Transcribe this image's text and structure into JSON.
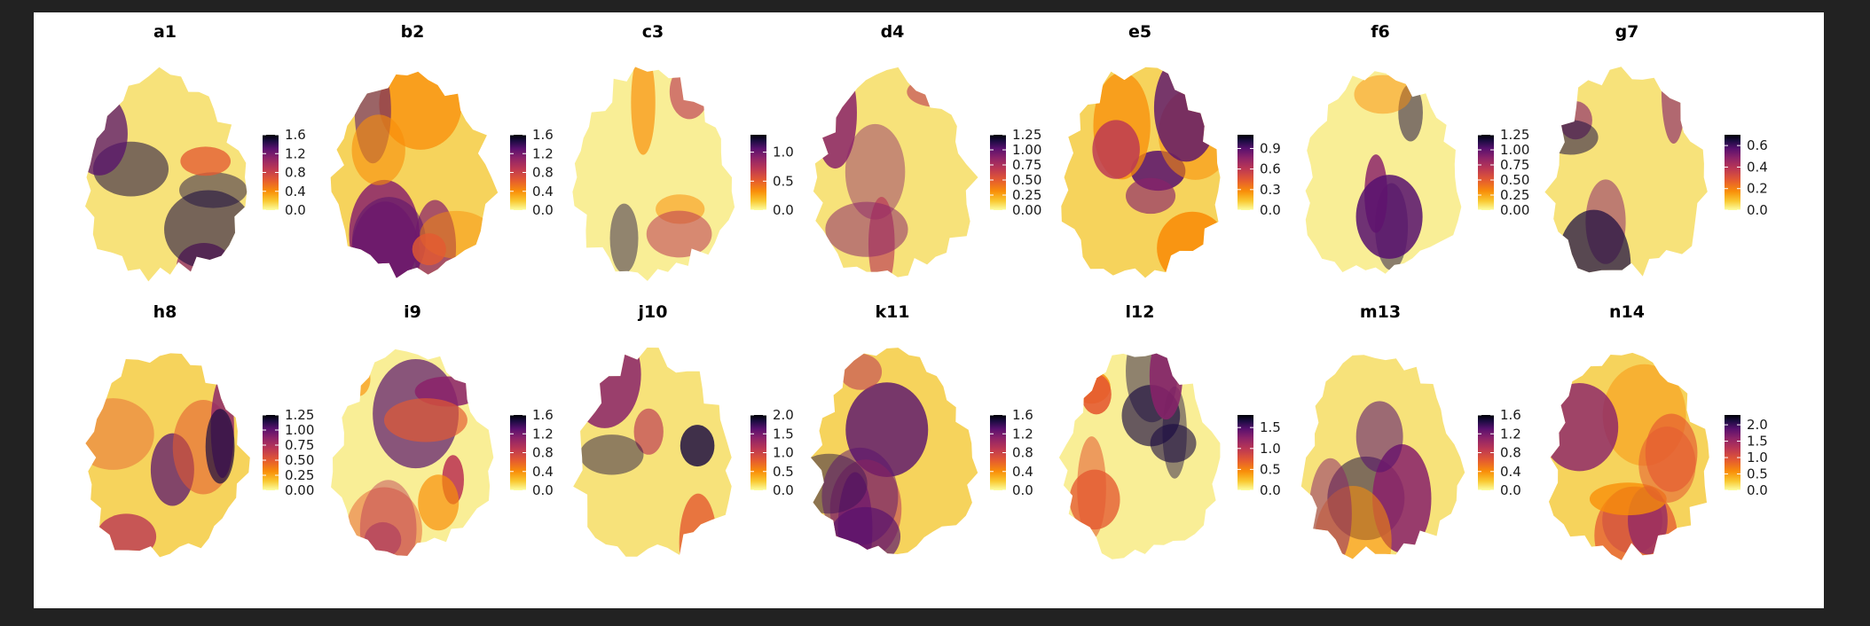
{
  "figure": {
    "background": "#222222",
    "panel_background": "#ffffff",
    "colormap": "inferno (light yellow to dark purple)",
    "colormap_stops": [
      "#fcffa4",
      "#f9c932",
      "#f98e09",
      "#e45a31",
      "#bc3754",
      "#8a226a",
      "#57106e",
      "#1b0c41",
      "#000004"
    ]
  },
  "chart_data": [
    {
      "type": "heatmap",
      "title": "a1",
      "colorbar_ticks": [
        "0.0",
        "0.4",
        "0.8",
        "1.2",
        "1.6"
      ],
      "range": [
        0,
        1.6
      ]
    },
    {
      "type": "heatmap",
      "title": "b2",
      "colorbar_ticks": [
        "0.0",
        "0.4",
        "0.8",
        "1.2",
        "1.6"
      ],
      "range": [
        0,
        1.6
      ]
    },
    {
      "type": "heatmap",
      "title": "c3",
      "colorbar_ticks": [
        "0.0",
        "0.5",
        "1.0"
      ],
      "range": [
        0,
        1.3
      ]
    },
    {
      "type": "heatmap",
      "title": "d4",
      "colorbar_ticks": [
        "0.00",
        "0.25",
        "0.50",
        "0.75",
        "1.00",
        "1.25"
      ],
      "range": [
        0,
        1.25
      ]
    },
    {
      "type": "heatmap",
      "title": "e5",
      "colorbar_ticks": [
        "0.0",
        "0.3",
        "0.6",
        "0.9"
      ],
      "range": [
        0,
        1.1
      ]
    },
    {
      "type": "heatmap",
      "title": "f6",
      "colorbar_ticks": [
        "0.00",
        "0.25",
        "0.50",
        "0.75",
        "1.00",
        "1.25"
      ],
      "range": [
        0,
        1.25
      ]
    },
    {
      "type": "heatmap",
      "title": "g7",
      "colorbar_ticks": [
        "0.0",
        "0.2",
        "0.4",
        "0.6"
      ],
      "range": [
        0,
        0.7
      ]
    },
    {
      "type": "heatmap",
      "title": "h8",
      "colorbar_ticks": [
        "0.00",
        "0.25",
        "0.50",
        "0.75",
        "1.00",
        "1.25"
      ],
      "range": [
        0,
        1.25
      ]
    },
    {
      "type": "heatmap",
      "title": "i9",
      "colorbar_ticks": [
        "0.0",
        "0.4",
        "0.8",
        "1.2",
        "1.6"
      ],
      "range": [
        0,
        1.6
      ]
    },
    {
      "type": "heatmap",
      "title": "j10",
      "colorbar_ticks": [
        "0.0",
        "0.5",
        "1.0",
        "1.5",
        "2.0"
      ],
      "range": [
        0,
        2.0
      ]
    },
    {
      "type": "heatmap",
      "title": "k11",
      "colorbar_ticks": [
        "0.0",
        "0.4",
        "0.8",
        "1.2",
        "1.6"
      ],
      "range": [
        0,
        1.6
      ]
    },
    {
      "type": "heatmap",
      "title": "l12",
      "colorbar_ticks": [
        "0.0",
        "0.5",
        "1.0",
        "1.5"
      ],
      "range": [
        0,
        1.8
      ]
    },
    {
      "type": "heatmap",
      "title": "m13",
      "colorbar_ticks": [
        "0.0",
        "0.4",
        "0.8",
        "1.2",
        "1.6"
      ],
      "range": [
        0,
        1.6
      ]
    },
    {
      "type": "heatmap",
      "title": "n14",
      "colorbar_ticks": [
        "0.0",
        "0.5",
        "1.0",
        "1.5",
        "2.0"
      ],
      "range": [
        0,
        2.3
      ]
    }
  ]
}
